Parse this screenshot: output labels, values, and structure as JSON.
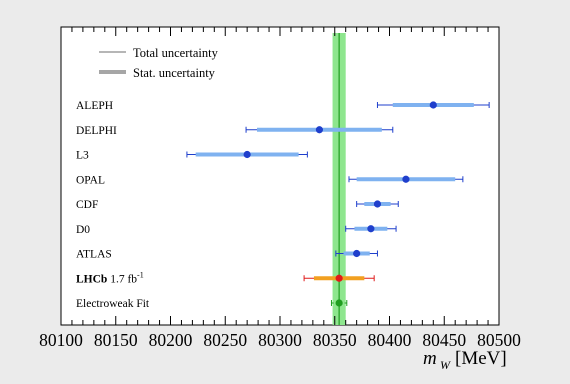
{
  "chart_data": {
    "type": "scatter",
    "description_style": "horizontal error-bar comparison plot",
    "x_axis": {
      "ticks": [
        80100,
        80150,
        80200,
        80250,
        80300,
        80350,
        80400,
        80450,
        80500
      ],
      "tick_labels": [
        "80100",
        "80150",
        "80200",
        "80250",
        "80300",
        "80350",
        "80400",
        "80450",
        "80500"
      ],
      "xlim": [
        80100,
        80500
      ],
      "title_main": "m",
      "title_sub": "W",
      "title_unit": "[MeV]"
    },
    "legend": {
      "position": "top-left",
      "entries": [
        {
          "label": "Total uncertainty",
          "style": "thin-line"
        },
        {
          "label": "Stat. uncertainty",
          "style": "thick-band"
        }
      ]
    },
    "reference_band": {
      "center": 80354,
      "half_width": 6,
      "color": "#8ee68e",
      "line_color": "#1f9e1f"
    },
    "measurements": [
      {
        "label": "ALEPH",
        "label_bold": "",
        "label_sup": "",
        "value": 80440,
        "total": 51,
        "stat": 37,
        "color": "#1f3fcc",
        "band_color": "#7fb2f0"
      },
      {
        "label": "DELPHI",
        "label_bold": "",
        "label_sup": "",
        "value": 80336,
        "total": 67,
        "stat": 57,
        "color": "#1f3fcc",
        "band_color": "#7fb2f0"
      },
      {
        "label": "L3",
        "label_bold": "",
        "label_sup": "",
        "value": 80270,
        "total": 55,
        "stat": 47,
        "color": "#1f3fcc",
        "band_color": "#7fb2f0"
      },
      {
        "label": "OPAL",
        "label_bold": "",
        "label_sup": "",
        "value": 80415,
        "total": 52,
        "stat": 45,
        "color": "#1f3fcc",
        "band_color": "#7fb2f0"
      },
      {
        "label": "CDF",
        "label_bold": "",
        "label_sup": "",
        "value": 80389,
        "total": 19,
        "stat": 12,
        "color": "#1f3fcc",
        "band_color": "#7fb2f0"
      },
      {
        "label": "D0",
        "label_bold": "",
        "label_sup": "",
        "value": 80383,
        "total": 23,
        "stat": 15,
        "color": "#1f3fcc",
        "band_color": "#7fb2f0"
      },
      {
        "label": "ATLAS",
        "label_bold": "",
        "label_sup": "",
        "value": 80370,
        "total": 19,
        "stat": 12,
        "color": "#1f3fcc",
        "band_color": "#7fb2f0"
      },
      {
        "label": "",
        "label_bold": "LHCb",
        "label_tail": " 1.7 fb",
        "label_sup": "-1",
        "value": 80354,
        "total": 32,
        "stat": 23,
        "color": "#e01a1a",
        "band_color": "#f2a020"
      },
      {
        "label": "Electroweak Fit",
        "label_bold": "",
        "label_sup": "",
        "value": 80354,
        "total": 7,
        "stat": 5,
        "color": "#1f9e1f",
        "band_color": "#8ee68e"
      }
    ]
  }
}
